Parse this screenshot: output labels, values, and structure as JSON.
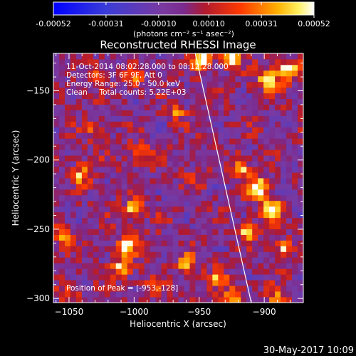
{
  "chart_data": {
    "type": "heatmap",
    "title": "Reconstructed RHESSI Image",
    "xlabel": "Heliocentric X (arcsec)",
    "ylabel": "Heliocentric Y (arcsec)",
    "x_ticks": [
      -1050,
      -1000,
      -950,
      -900
    ],
    "y_ticks": [
      -150,
      -200,
      -250,
      -300
    ],
    "xlim": [
      -1062,
      -870
    ],
    "ylim": [
      -303,
      -123
    ],
    "colorbar": {
      "min": -0.00052,
      "max": 0.00052,
      "tick_labels": [
        "-0.00052",
        "-0.00031",
        "-0.00010",
        "0.00010",
        "0.00031",
        "0.00052"
      ],
      "tick_values": [
        -0.00052,
        -0.00031,
        -0.0001,
        0.0001,
        0.00031,
        0.00052
      ],
      "unit_label": "(photons cm⁻² s⁻¹ asec⁻²)"
    },
    "info": [
      "11-Oct-2014 08:02:28.000 to 08:12:28.000",
      "Detectors: 3F 6F 9F, Att 0",
      "Energy Range: 25.0 - 50.0 keV",
      "Clean     Total counts: 5.22E+03"
    ],
    "peak_text": "Position of Peak = [-953,-128]",
    "limb_line": {
      "x": [
        -953,
        -910
      ],
      "y": [
        -123,
        -303
      ]
    },
    "blobs": [
      {
        "x": -925,
        "y": -125,
        "v": 0.00052
      },
      {
        "x": -897,
        "y": -142,
        "v": 0.00048
      },
      {
        "x": -882,
        "y": -135,
        "v": 0.0005
      },
      {
        "x": -948,
        "y": -128,
        "v": 0.00045
      },
      {
        "x": -905,
        "y": -220,
        "v": 0.00052
      },
      {
        "x": -895,
        "y": -235,
        "v": 0.0005
      },
      {
        "x": -918,
        "y": -205,
        "v": 0.0004
      },
      {
        "x": -912,
        "y": -252,
        "v": 0.00044
      },
      {
        "x": -885,
        "y": -265,
        "v": 0.00038
      },
      {
        "x": -1000,
        "y": -235,
        "v": 0.00045
      },
      {
        "x": -1005,
        "y": -262,
        "v": 0.00042
      },
      {
        "x": -995,
        "y": -195,
        "v": 0.00033
      },
      {
        "x": -1010,
        "y": -278,
        "v": 0.00036
      },
      {
        "x": -1040,
        "y": -210,
        "v": 0.00035
      },
      {
        "x": -1055,
        "y": -255,
        "v": 0.00038
      },
      {
        "x": -1030,
        "y": -178,
        "v": 0.00022
      },
      {
        "x": -968,
        "y": -165,
        "v": 0.00026
      },
      {
        "x": -960,
        "y": -275,
        "v": 0.00033
      },
      {
        "x": -925,
        "y": -300,
        "v": 0.00036
      },
      {
        "x": -935,
        "y": -285,
        "v": 0.00028
      },
      {
        "x": -890,
        "y": -300,
        "v": 0.0003
      },
      {
        "x": -1000,
        "y": -140,
        "v": 0.00024
      },
      {
        "x": -1030,
        "y": -135,
        "v": 0.0002
      },
      {
        "x": -955,
        "y": -215,
        "v": 0.00015
      },
      {
        "x": -1050,
        "y": -295,
        "v": 0.00022
      },
      {
        "x": -985,
        "y": -292,
        "v": 0.00026
      }
    ]
  },
  "footer": {
    "date": "30-May-2017 10:09"
  }
}
